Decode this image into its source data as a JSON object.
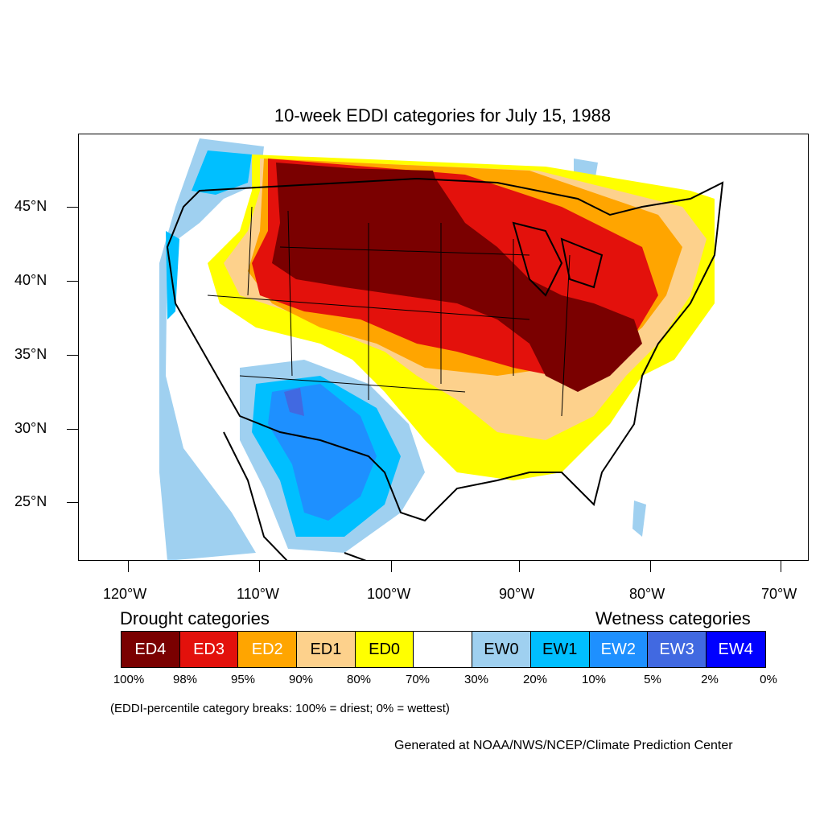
{
  "title": "10-week EDDI categories for July 15, 1988",
  "axes": {
    "lat_labels": [
      "45°N",
      "40°N",
      "35°N",
      "30°N",
      "25°N"
    ],
    "lon_labels": [
      "120°W",
      "110°W",
      "100°W",
      "90°W",
      "80°W",
      "70°W"
    ]
  },
  "legend": {
    "drought_heading": "Drought categories",
    "wetness_heading": "Wetness categories",
    "categories": [
      {
        "label": "ED4",
        "color": "#7a0000",
        "text_color": "#ffffff"
      },
      {
        "label": "ED3",
        "color": "#e3110c",
        "text_color": "#ffffff"
      },
      {
        "label": "ED2",
        "color": "#ffa500",
        "text_color": "#ffffff"
      },
      {
        "label": "ED1",
        "color": "#fdd18c",
        "text_color": "#000000"
      },
      {
        "label": "ED0",
        "color": "#ffff00",
        "text_color": "#000000"
      },
      {
        "label": "",
        "color": "#ffffff",
        "text_color": "#000000"
      },
      {
        "label": "EW0",
        "color": "#9fd0f0",
        "text_color": "#000000"
      },
      {
        "label": "EW1",
        "color": "#00bfff",
        "text_color": "#000000"
      },
      {
        "label": "EW2",
        "color": "#1e90ff",
        "text_color": "#ffffff"
      },
      {
        "label": "EW3",
        "color": "#4169e1",
        "text_color": "#ffffff"
      },
      {
        "label": "EW4",
        "color": "#0000ff",
        "text_color": "#ffffff"
      }
    ],
    "percentiles": [
      "100%",
      "98%",
      "95%",
      "90%",
      "80%",
      "70%",
      "30%",
      "20%",
      "10%",
      "5%",
      "2%",
      "0%"
    ]
  },
  "note": "(EDDI-percentile category breaks: 100% = driest; 0% = wettest)",
  "credit": "Generated at NOAA/NWS/NCEP/Climate Prediction Center"
}
